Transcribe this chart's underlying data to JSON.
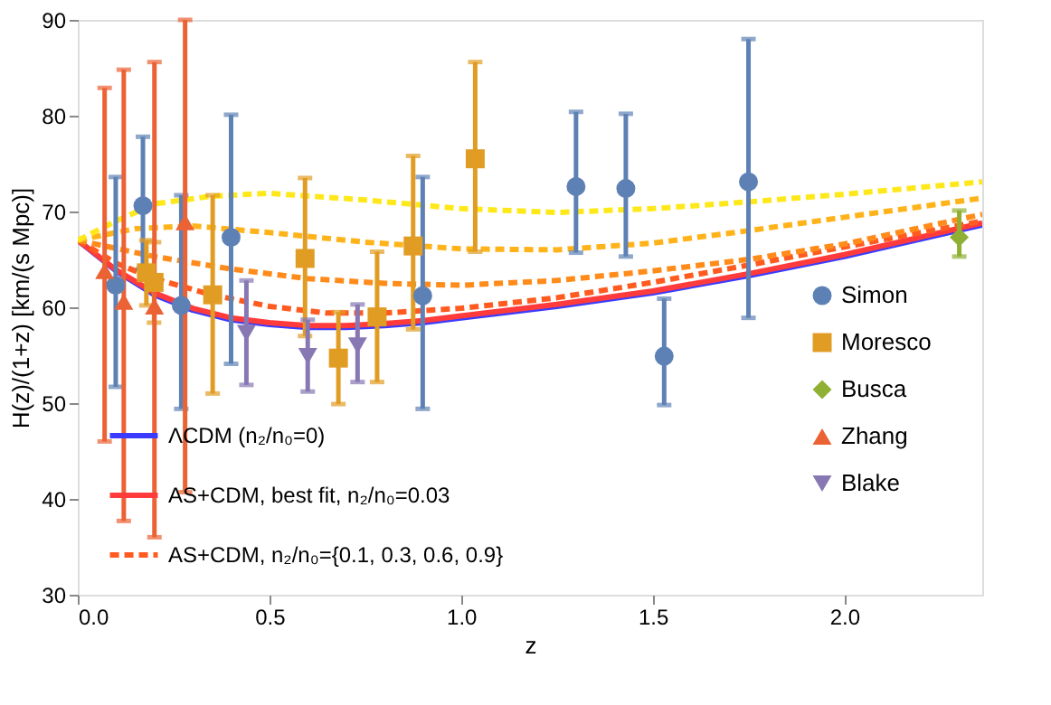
{
  "chart_data": {
    "type": "scatter",
    "xlabel": "z",
    "ylabel": "H(z)/(1+z)  [km/(s Mpc)]",
    "xlim": [
      0,
      2.36
    ],
    "ylim": [
      30,
      90
    ],
    "xticks": [
      {
        "value": 0,
        "label": "0.0"
      },
      0.5,
      {
        "value": 1,
        "label": "1.0"
      },
      1.5,
      {
        "value": 2,
        "label": "2.0"
      }
    ],
    "yticks": [
      30,
      40,
      50,
      60,
      70,
      80,
      90
    ],
    "grid": false,
    "legend": "right",
    "series": [
      {
        "type": "line",
        "name": "ΛCDM (n₂/n₀=0)",
        "color": "#3b3bff",
        "line_style": "solid",
        "x": [
          0,
          0.1,
          0.2,
          0.3,
          0.4,
          0.5,
          0.6,
          0.7,
          0.8,
          0.9,
          1.0,
          1.25,
          1.5,
          1.75,
          2.0,
          2.36
        ],
        "values": [
          67.0,
          63.8,
          61.3,
          59.7,
          58.7,
          58.2,
          57.9,
          57.9,
          58.1,
          58.4,
          58.9,
          60.1,
          61.5,
          63.3,
          65.3,
          68.6
        ]
      },
      {
        "type": "line",
        "name": "AS+CDM, best fit, n₂/n₀=0.03",
        "color": "#ff3b3b",
        "line_style": "solid",
        "x": [
          0,
          0.1,
          0.2,
          0.3,
          0.4,
          0.5,
          0.6,
          0.7,
          0.8,
          0.9,
          1.0,
          1.25,
          1.5,
          1.75,
          2.0,
          2.36
        ],
        "values": [
          67.0,
          63.9,
          61.5,
          59.9,
          58.9,
          58.4,
          58.1,
          58.1,
          58.3,
          58.6,
          59.1,
          60.3,
          61.7,
          63.5,
          65.5,
          68.8
        ]
      },
      {
        "type": "line",
        "name": "AS+CDM, n₂/n₀={0.1, 0.3, 0.6, 0.9}",
        "color": "#ff5a1f",
        "line_style": "dashed",
        "x": [
          0,
          0.1,
          0.2,
          0.35,
          0.5,
          0.65,
          0.8,
          1.0,
          1.25,
          1.5,
          1.75,
          2.0,
          2.36
        ],
        "values": [
          67.0,
          64.6,
          63.0,
          61.3,
          60.1,
          59.4,
          59.4,
          59.9,
          61.0,
          62.6,
          64.4,
          66.3,
          69.0
        ]
      },
      {
        "type": "line",
        "color": "#ff8c1a",
        "line_style": "dashed",
        "x": [
          0,
          0.2,
          0.4,
          0.6,
          0.8,
          1.0,
          1.25,
          1.5,
          1.75,
          2.0,
          2.36
        ],
        "values": [
          67.0,
          65.3,
          64.0,
          63.0,
          62.5,
          62.3,
          62.8,
          63.8,
          65.0,
          66.6,
          69.7
        ]
      },
      {
        "type": "line",
        "color": "#ffb31a",
        "line_style": "dashed",
        "x": [
          0,
          0.15,
          0.3,
          0.5,
          0.75,
          1.0,
          1.25,
          1.5,
          1.75,
          2.0,
          2.36
        ],
        "values": [
          67.0,
          68.2,
          68.5,
          67.8,
          66.8,
          66.1,
          66.0,
          66.7,
          68.0,
          69.4,
          71.4
        ]
      },
      {
        "type": "line",
        "color": "#ffe81a",
        "line_style": "dashed",
        "x": [
          0,
          0.1,
          0.2,
          0.35,
          0.5,
          0.75,
          1.0,
          1.25,
          1.5,
          1.75,
          2.0,
          2.36
        ],
        "values": [
          67.0,
          69.0,
          70.8,
          71.6,
          71.9,
          71.2,
          70.3,
          69.9,
          70.3,
          71.0,
          71.8,
          73.1
        ]
      },
      {
        "name": "Simon",
        "color": "#5e81b5",
        "marker": "circle",
        "x": [
          0.099,
          0.17,
          0.27,
          0.4,
          0.9,
          1.3,
          1.43,
          1.53,
          1.75
        ],
        "values": [
          62.3,
          70.6,
          60.2,
          67.3,
          61.2,
          72.6,
          72.4,
          54.9,
          73.1
        ],
        "errors": [
          [
            51.7,
            73.6
          ],
          [
            64.0,
            77.8
          ],
          [
            49.4,
            71.7
          ],
          [
            54.1,
            80.1
          ],
          [
            49.4,
            73.6
          ],
          [
            65.7,
            80.4
          ],
          [
            65.3,
            80.2
          ],
          [
            49.8,
            60.9
          ],
          [
            58.9,
            88.0
          ]
        ]
      },
      {
        "name": "Moresco",
        "color": "#e19c24",
        "marker": "square",
        "x": [
          0.179,
          0.199,
          0.352,
          0.593,
          0.68,
          0.781,
          0.875,
          1.037
        ],
        "values": [
          63.6,
          62.6,
          61.3,
          65.1,
          54.7,
          59.0,
          66.4,
          75.5
        ],
        "errors": [
          [
            60.2,
            67.0
          ],
          [
            58.4,
            66.8
          ],
          [
            51.0,
            71.7
          ],
          [
            57.0,
            73.5
          ],
          [
            49.9,
            59.5
          ],
          [
            52.2,
            65.8
          ],
          [
            57.7,
            75.8
          ],
          [
            65.8,
            85.6
          ]
        ]
      },
      {
        "name": "Busca",
        "color": "#8fb032",
        "marker": "diamond",
        "x": [
          2.3
        ],
        "values": [
          67.3
        ],
        "errors": [
          [
            65.3,
            70.1
          ]
        ]
      },
      {
        "name": "Zhang",
        "color": "#eb6235",
        "marker": "triangle",
        "x": [
          0.07,
          0.12,
          0.2,
          0.28
        ],
        "values": [
          63.8,
          60.6,
          60.1,
          68.9
        ],
        "errors": [
          [
            46.0,
            82.9
          ],
          [
            37.7,
            84.8
          ],
          [
            36.0,
            85.6
          ],
          [
            40.7,
            90
          ]
        ]
      },
      {
        "name": "Blake",
        "color": "#8778b3",
        "marker": "triangle-down",
        "x": [
          0.44,
          0.6,
          0.73
        ],
        "values": [
          57.3,
          54.9,
          56.0
        ],
        "errors": [
          [
            51.9,
            62.8
          ],
          [
            51.2,
            58.7
          ],
          [
            52.2,
            60.3
          ]
        ]
      }
    ]
  }
}
